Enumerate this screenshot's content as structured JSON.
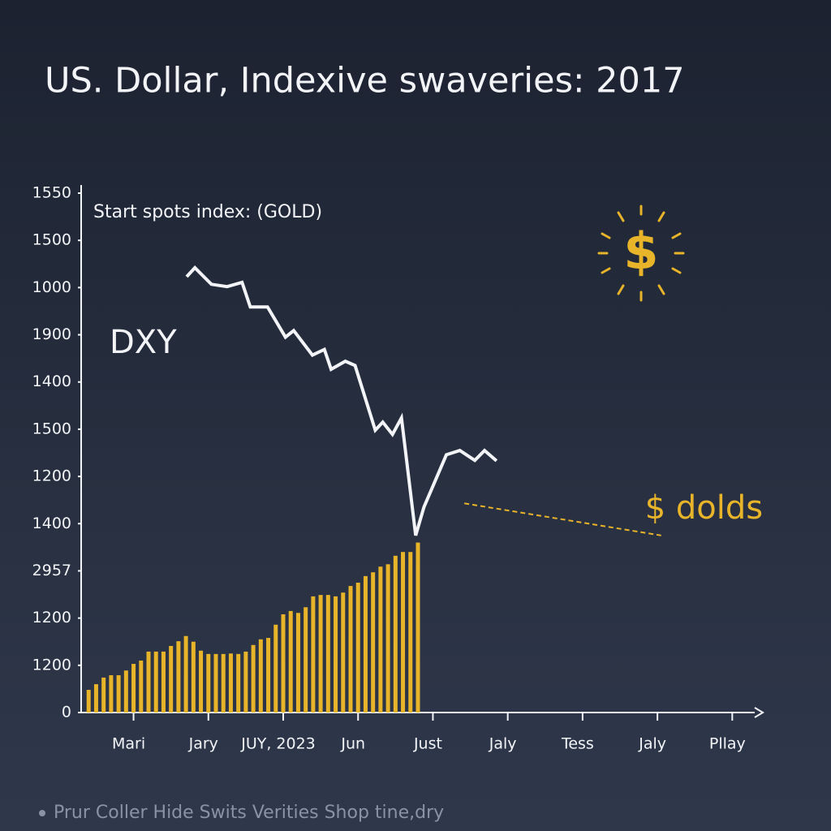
{
  "chart_data": {
    "type": "combo",
    "title": "US. Dollar, Indexive swaveries: 2017",
    "subtitle": "Start spots index: (GOLD)",
    "line_label": "DXY",
    "icon_label": "$",
    "footnote": "Prur Coller Hide Swits Verities Shop tine,dry",
    "xlim": [
      0,
      9
    ],
    "xticks": [
      {
        "value": 0.7,
        "label": "Mari"
      },
      {
        "value": 1.7,
        "label": "Jary"
      },
      {
        "value": 2.7,
        "label": "JUY, 2023"
      },
      {
        "value": 3.7,
        "label": "Jun"
      },
      {
        "value": 4.7,
        "label": "Just"
      },
      {
        "value": 5.7,
        "label": "Jaly"
      },
      {
        "value": 6.7,
        "label": "Tess"
      },
      {
        "value": 7.7,
        "label": "Jaly"
      },
      {
        "value": 8.7,
        "label": "Pllay"
      }
    ],
    "ylim": [
      0,
      11
    ],
    "yticks": [
      0,
      {
        "value": 1,
        "label": "1200"
      },
      {
        "value": 2,
        "label": "1200"
      },
      {
        "value": 3,
        "label": "2957"
      },
      {
        "value": 4,
        "label": "1400"
      },
      {
        "value": 5,
        "label": "1200"
      },
      {
        "value": 6,
        "label": "1500"
      },
      {
        "value": 7,
        "label": "1400"
      },
      {
        "value": 8,
        "label": "1900"
      },
      {
        "value": 9,
        "label": "1000"
      },
      {
        "value": 10,
        "label": "1500"
      },
      {
        "value": 11,
        "label": "1550"
      }
    ],
    "series": [
      {
        "type": "bar",
        "color": "#e8b429",
        "x": [
          0.1,
          0.2,
          0.3,
          0.4,
          0.5,
          0.6,
          0.7,
          0.8,
          0.9,
          1.0,
          1.1,
          1.2,
          1.3,
          1.4,
          1.5,
          1.6,
          1.7,
          1.8,
          1.9,
          2.0,
          2.1,
          2.2,
          2.3,
          2.4,
          2.5,
          2.6,
          2.7,
          2.8,
          2.9,
          3.0,
          3.1,
          3.2,
          3.3,
          3.4,
          3.5,
          3.6,
          3.7,
          3.8,
          3.9,
          4.0,
          4.1,
          4.2,
          4.3,
          4.4,
          4.5
        ],
        "values": [
          0.48,
          0.6,
          0.74,
          0.79,
          0.79,
          0.89,
          1.03,
          1.1,
          1.29,
          1.29,
          1.29,
          1.41,
          1.51,
          1.62,
          1.5,
          1.31,
          1.24,
          1.24,
          1.24,
          1.25,
          1.24,
          1.29,
          1.43,
          1.55,
          1.58,
          1.86,
          2.08,
          2.15,
          2.11,
          2.23,
          2.46,
          2.49,
          2.49,
          2.46,
          2.54,
          2.68,
          2.75,
          2.89,
          2.97,
          3.09,
          3.14,
          3.32,
          3.4,
          3.4,
          3.6
        ]
      },
      {
        "type": "line",
        "name": "DXY",
        "color": "#f2f4f8",
        "x": [
          1.41,
          1.52,
          1.74,
          1.95,
          2.15,
          2.26,
          2.49,
          2.73,
          2.84,
          3.09,
          3.25,
          3.34,
          3.53,
          3.66,
          3.93,
          4.03,
          4.16,
          4.28,
          4.47,
          4.58,
          4.88,
          5.06,
          5.26,
          5.39,
          5.55
        ],
        "values": [
          9.23,
          9.42,
          9.07,
          9.02,
          9.11,
          8.59,
          8.59,
          7.95,
          8.09,
          7.57,
          7.69,
          7.27,
          7.44,
          7.35,
          5.98,
          6.15,
          5.89,
          6.24,
          3.75,
          4.35,
          5.46,
          5.55,
          5.34,
          5.55,
          5.33
        ]
      },
      {
        "type": "line",
        "name": "$ dolds",
        "color": "#e8b429",
        "dashed": true,
        "x": [
          5.12,
          7.75
        ],
        "values": [
          4.43,
          3.75
        ]
      }
    ]
  }
}
